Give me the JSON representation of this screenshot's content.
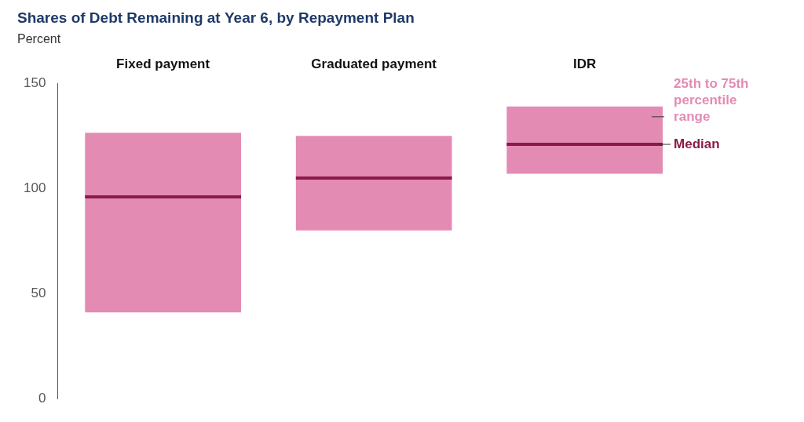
{
  "chart_data": {
    "type": "bar",
    "title": "Shares of Debt Remaining at Year 6, by Repayment Plan",
    "subtitle": "Percent",
    "categories": [
      "Fixed payment",
      "Graduated payment",
      "IDR"
    ],
    "series": [
      {
        "name": "25th to 75th percentile range",
        "color": "#e48bb4",
        "values": [
          [
            41,
            126.5
          ],
          [
            80,
            125
          ],
          [
            107,
            139
          ]
        ]
      },
      {
        "name": "Median",
        "color": "#8b1a48",
        "values": [
          96,
          105,
          121
        ]
      }
    ],
    "ylim": [
      0,
      150
    ],
    "yticks": [
      0,
      50,
      100,
      150
    ],
    "grid": false,
    "legend": "right"
  }
}
